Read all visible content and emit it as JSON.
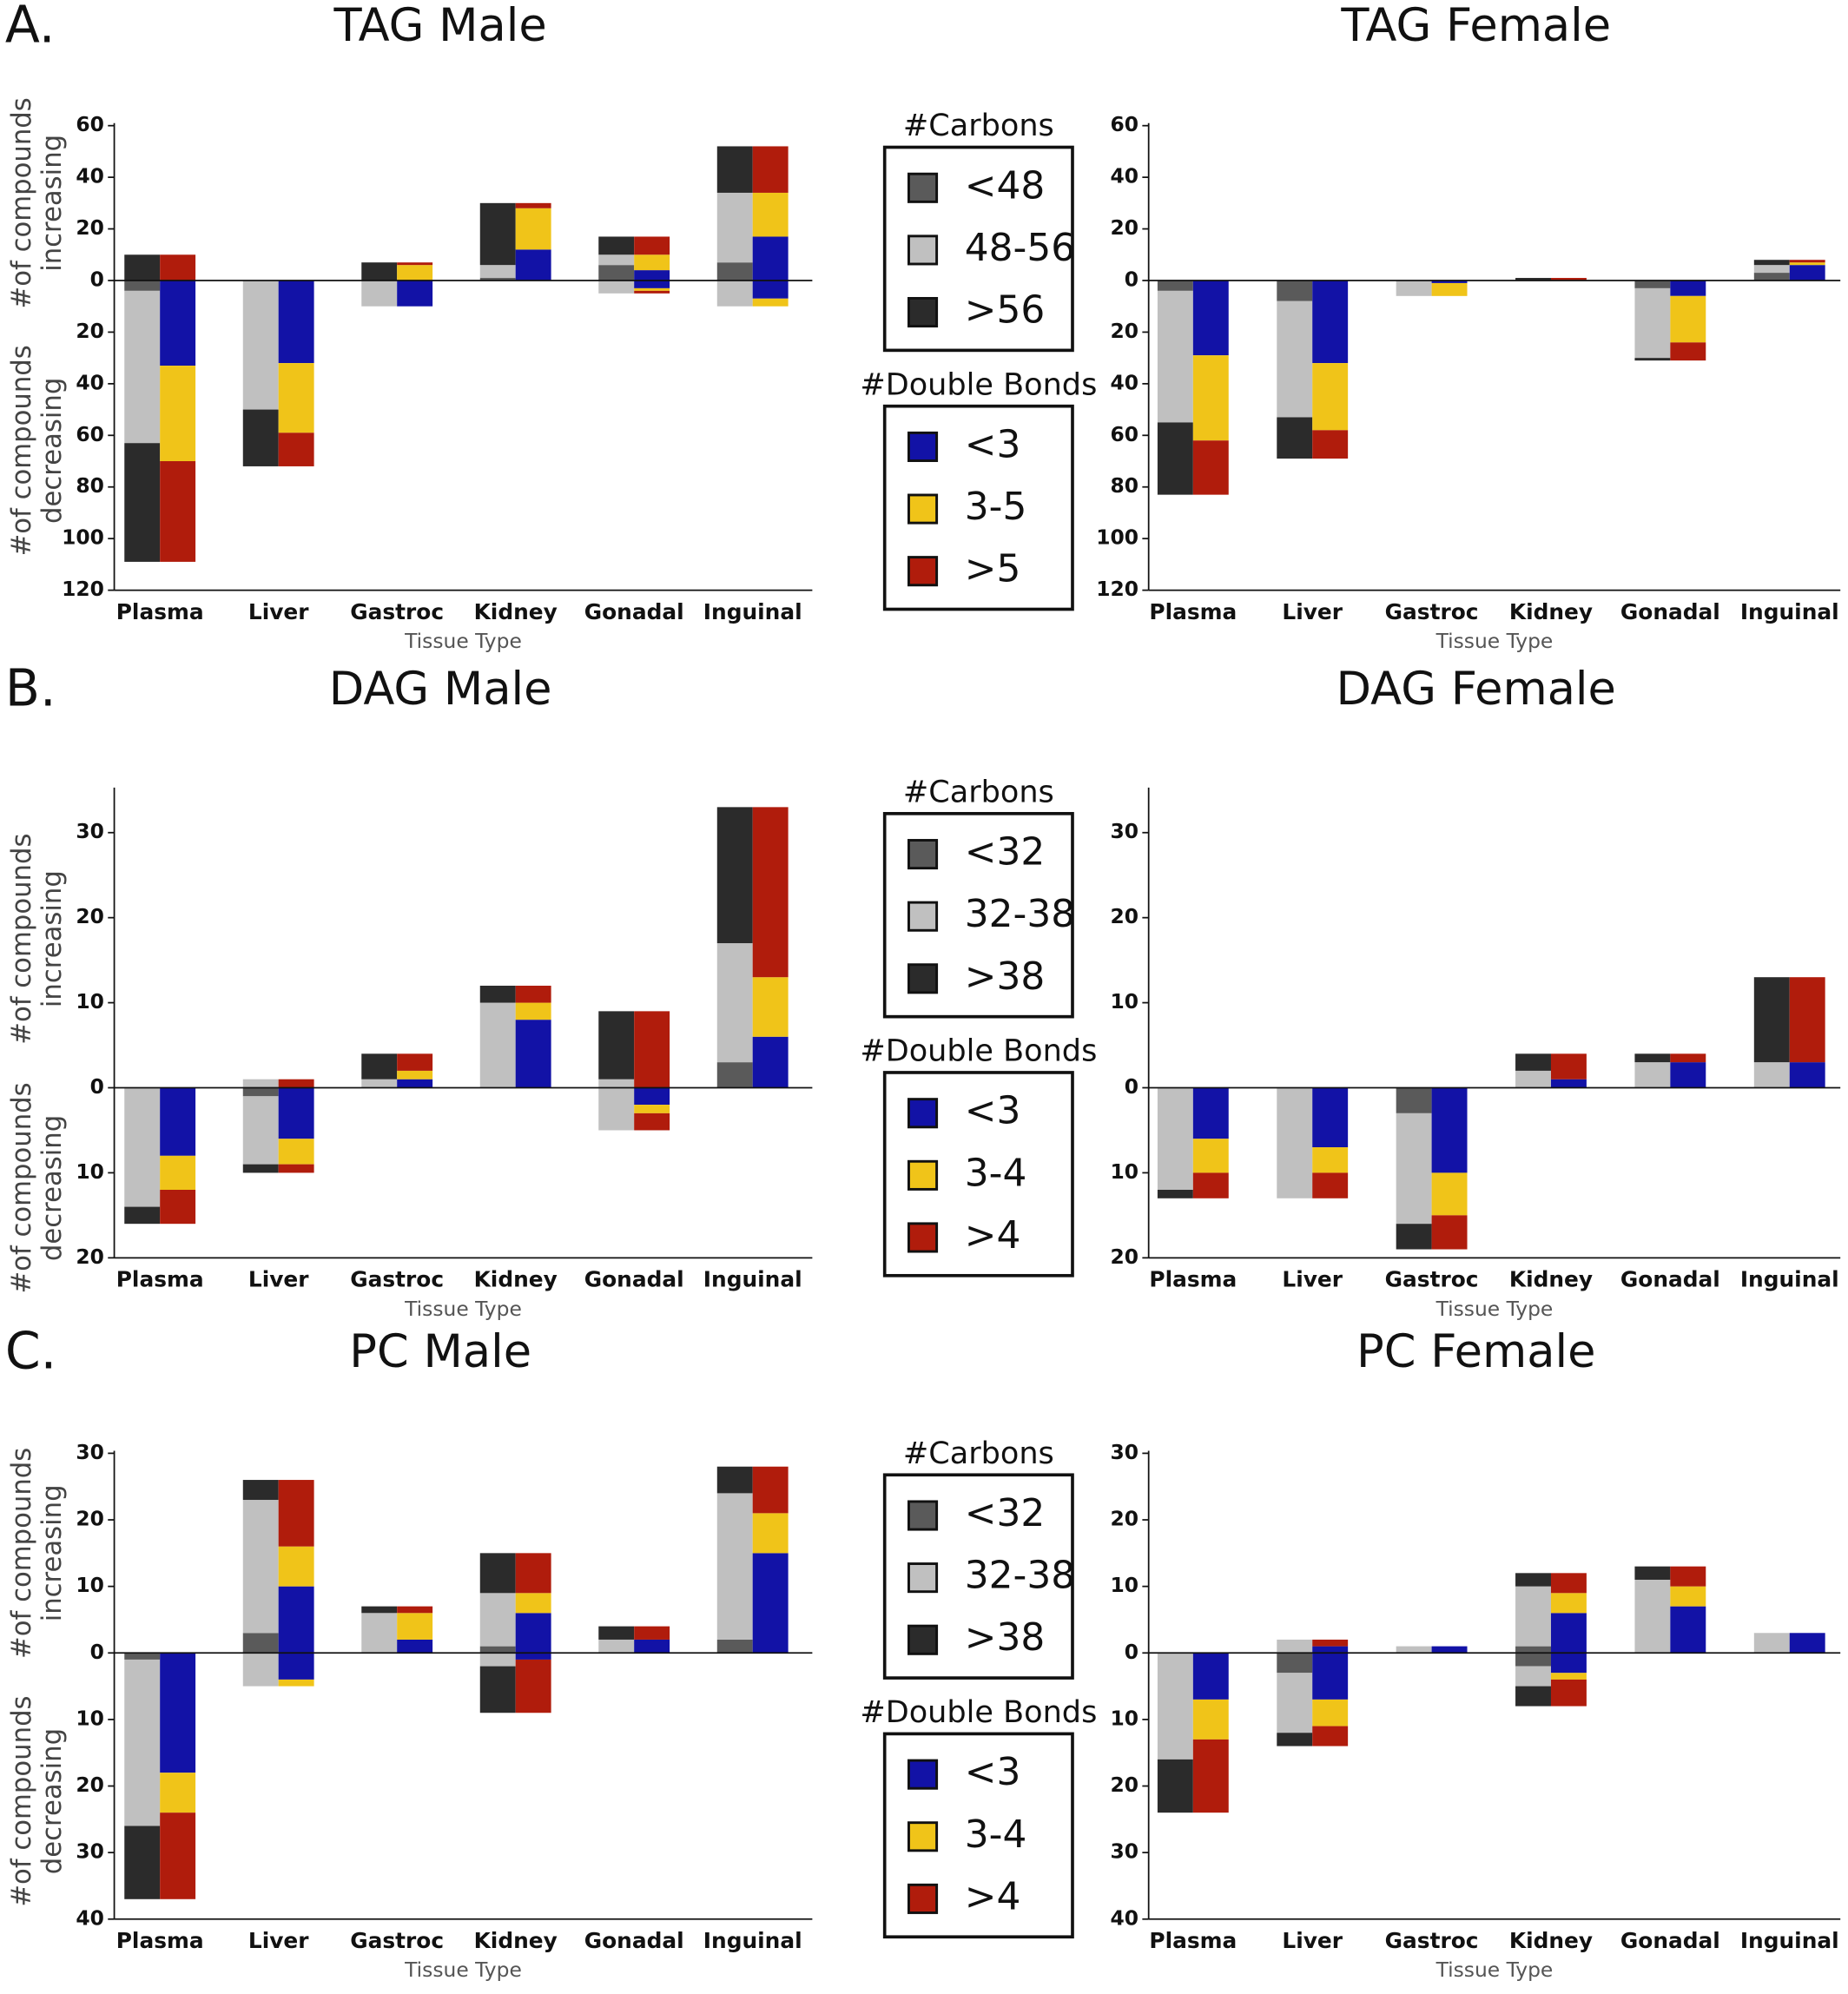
{
  "chart_data": [
    {
      "type": "bar",
      "panel": "A.",
      "title": "TAG Male",
      "xlabel": "Tissue Type",
      "ylabel_up": [
        "#of compounds",
        "increasing"
      ],
      "ylabel_down": [
        "#of compounds",
        "decreasing"
      ],
      "categories": [
        "Plasma",
        "Liver",
        "Gastroc",
        "Kidney",
        "Gonadal",
        "Inguinal"
      ],
      "ylim": [
        -120,
        60
      ],
      "yticks": [
        60,
        40,
        20,
        0,
        {
          "value": -20,
          "label": "20"
        },
        {
          "value": -40,
          "label": "40"
        },
        {
          "value": -60,
          "label": "60"
        },
        {
          "value": -80,
          "label": "80"
        },
        {
          "value": -100,
          "label": "100"
        },
        {
          "value": -120,
          "label": "120"
        }
      ],
      "series_groups": [
        {
          "title": "#Carbons",
          "series": [
            {
              "name": "<48",
              "color": "#5a5a5a",
              "values": [
                0,
                0,
                0,
                1,
                6,
                7
              ],
              "values_down": [
                -4,
                0,
                0,
                0,
                0,
                0
              ]
            },
            {
              "name": "48-56",
              "color": "#c0c0c0",
              "values": [
                0,
                0,
                0,
                5,
                4,
                27
              ],
              "values_down": [
                -59,
                -50,
                -10,
                0,
                -5,
                -10
              ]
            },
            {
              "name": ">56",
              "color": "#2b2b2b",
              "values": [
                10,
                0,
                7,
                24,
                7,
                18
              ],
              "values_down": [
                -46,
                -22,
                0,
                0,
                0,
                0
              ]
            }
          ]
        },
        {
          "title": "#Double Bonds",
          "series": [
            {
              "name": "<3",
              "color": "#1212a6",
              "values": [
                0,
                0,
                0,
                12,
                4,
                17
              ],
              "values_down": [
                -33,
                -32,
                -10,
                0,
                -3,
                -7
              ]
            },
            {
              "name": "3-5",
              "color": "#f0c419",
              "values": [
                0,
                0,
                6,
                16,
                6,
                17
              ],
              "values_down": [
                -37,
                -27,
                0,
                0,
                -1,
                -3
              ]
            },
            {
              "name": ">5",
              "color": "#b01c0c",
              "values": [
                10,
                0,
                1,
                2,
                7,
                18
              ],
              "values_down": [
                -39,
                -13,
                0,
                0,
                -1,
                0
              ]
            }
          ]
        }
      ]
    },
    {
      "type": "bar",
      "title": "TAG Female",
      "xlabel": "Tissue Type",
      "categories": [
        "Plasma",
        "Liver",
        "Gastroc",
        "Kidney",
        "Gonadal",
        "Inguinal"
      ],
      "ylim": [
        -120,
        60
      ],
      "yticks": [
        60,
        40,
        20,
        0,
        {
          "value": -20,
          "label": "20"
        },
        {
          "value": -40,
          "label": "40"
        },
        {
          "value": -60,
          "label": "60"
        },
        {
          "value": -80,
          "label": "80"
        },
        {
          "value": -100,
          "label": "100"
        },
        {
          "value": -120,
          "label": "120"
        }
      ],
      "series_groups": [
        {
          "series": [
            {
              "color": "#5a5a5a",
              "values": [
                0,
                0,
                0,
                0,
                0,
                3
              ],
              "values_down": [
                -4,
                -8,
                0,
                0,
                -3,
                0
              ]
            },
            {
              "color": "#c0c0c0",
              "values": [
                0,
                0,
                0,
                0,
                0,
                3
              ],
              "values_down": [
                -51,
                -45,
                -6,
                0,
                -27,
                0
              ]
            },
            {
              "color": "#2b2b2b",
              "values": [
                0,
                0,
                0,
                1,
                0,
                2
              ],
              "values_down": [
                -28,
                -16,
                0,
                0,
                -1,
                0
              ]
            }
          ]
        },
        {
          "series": [
            {
              "color": "#1212a6",
              "values": [
                0,
                0,
                0,
                0,
                0,
                6
              ],
              "values_down": [
                -29,
                -32,
                -1,
                0,
                -6,
                0
              ]
            },
            {
              "color": "#f0c419",
              "values": [
                0,
                0,
                0,
                0,
                0,
                1
              ],
              "values_down": [
                -33,
                -26,
                -5,
                0,
                -18,
                0
              ]
            },
            {
              "color": "#b01c0c",
              "values": [
                0,
                0,
                0,
                1,
                0,
                1
              ],
              "values_down": [
                -21,
                -11,
                0,
                0,
                -7,
                0
              ]
            }
          ]
        }
      ]
    },
    {
      "type": "bar",
      "panel": "B.",
      "title": "DAG Male",
      "xlabel": "Tissue Type",
      "ylabel_up": [
        "#of compounds",
        "increasing"
      ],
      "ylabel_down": [
        "#of compounds",
        "decreasing"
      ],
      "categories": [
        "Plasma",
        "Liver",
        "Gastroc",
        "Kidney",
        "Gonadal",
        "Inguinal"
      ],
      "ylim": [
        -20,
        35
      ],
      "yticks": [
        30,
        20,
        10,
        0,
        {
          "value": -10,
          "label": "10"
        },
        {
          "value": -20,
          "label": "20"
        }
      ],
      "series_groups": [
        {
          "title": "#Carbons",
          "series": [
            {
              "name": "<32",
              "color": "#5a5a5a",
              "values": [
                0,
                0,
                0,
                0,
                0,
                3
              ],
              "values_down": [
                0,
                -1,
                0,
                0,
                0,
                0
              ]
            },
            {
              "name": "32-38",
              "color": "#c0c0c0",
              "values": [
                0,
                1,
                1,
                10,
                1,
                14
              ],
              "values_down": [
                -14,
                -8,
                0,
                0,
                -5,
                0
              ]
            },
            {
              "name": ">38",
              "color": "#2b2b2b",
              "values": [
                0,
                0,
                3,
                2,
                8,
                16
              ],
              "values_down": [
                -2,
                -1,
                0,
                0,
                0,
                0
              ]
            }
          ]
        },
        {
          "title": "#Double Bonds",
          "series": [
            {
              "name": "<3",
              "color": "#1212a6",
              "values": [
                0,
                0,
                1,
                8,
                0,
                6
              ],
              "values_down": [
                -8,
                -6,
                0,
                0,
                -2,
                0
              ]
            },
            {
              "name": "3-4",
              "color": "#f0c419",
              "values": [
                0,
                0,
                1,
                2,
                0,
                7
              ],
              "values_down": [
                -4,
                -3,
                0,
                0,
                -1,
                0
              ]
            },
            {
              "name": ">4",
              "color": "#b01c0c",
              "values": [
                0,
                1,
                2,
                2,
                9,
                20
              ],
              "values_down": [
                -4,
                -1,
                0,
                0,
                -2,
                0
              ]
            }
          ]
        }
      ]
    },
    {
      "type": "bar",
      "title": "DAG Female",
      "xlabel": "Tissue Type",
      "categories": [
        "Plasma",
        "Liver",
        "Gastroc",
        "Kidney",
        "Gonadal",
        "Inguinal"
      ],
      "ylim": [
        -20,
        35
      ],
      "yticks": [
        30,
        20,
        10,
        0,
        {
          "value": -10,
          "label": "10"
        },
        {
          "value": -20,
          "label": "20"
        }
      ],
      "series_groups": [
        {
          "series": [
            {
              "color": "#5a5a5a",
              "values": [
                0,
                0,
                0,
                0,
                0,
                0
              ],
              "values_down": [
                0,
                0,
                -3,
                0,
                0,
                0
              ]
            },
            {
              "color": "#c0c0c0",
              "values": [
                0,
                0,
                0,
                2,
                3,
                3
              ],
              "values_down": [
                -12,
                -13,
                -13,
                0,
                0,
                0
              ]
            },
            {
              "color": "#2b2b2b",
              "values": [
                0,
                0,
                0,
                2,
                1,
                10
              ],
              "values_down": [
                -1,
                0,
                -3,
                0,
                0,
                0
              ]
            }
          ]
        },
        {
          "series": [
            {
              "color": "#1212a6",
              "values": [
                0,
                0,
                0,
                1,
                3,
                3
              ],
              "values_down": [
                -6,
                -7,
                -10,
                0,
                0,
                0
              ]
            },
            {
              "color": "#f0c419",
              "values": [
                0,
                0,
                0,
                0,
                0,
                0
              ],
              "values_down": [
                -4,
                -3,
                -5,
                0,
                0,
                0
              ]
            },
            {
              "color": "#b01c0c",
              "values": [
                0,
                0,
                0,
                3,
                1,
                10
              ],
              "values_down": [
                -3,
                -3,
                -4,
                0,
                0,
                0
              ]
            }
          ]
        }
      ]
    },
    {
      "type": "bar",
      "panel": "C.",
      "title": "PC Male",
      "xlabel": "Tissue Type",
      "ylabel_up": [
        "#of compounds",
        "increasing"
      ],
      "ylabel_down": [
        "#of compounds",
        "decreasing"
      ],
      "categories": [
        "Plasma",
        "Liver",
        "Gastroc",
        "Kidney",
        "Gonadal",
        "Inguinal"
      ],
      "ylim": [
        -40,
        30
      ],
      "yticks": [
        30,
        20,
        10,
        0,
        {
          "value": -10,
          "label": "10"
        },
        {
          "value": -20,
          "label": "20"
        },
        {
          "value": -30,
          "label": "30"
        },
        {
          "value": -40,
          "label": "40"
        }
      ],
      "series_groups": [
        {
          "title": "#Carbons",
          "series": [
            {
              "name": "<32",
              "color": "#5a5a5a",
              "values": [
                0,
                3,
                0,
                1,
                0,
                2
              ],
              "values_down": [
                -1,
                0,
                0,
                0,
                0,
                0
              ]
            },
            {
              "name": "32-38",
              "color": "#c0c0c0",
              "values": [
                0,
                20,
                6,
                8,
                2,
                22
              ],
              "values_down": [
                -25,
                -5,
                0,
                -2,
                0,
                0
              ]
            },
            {
              "name": ">38",
              "color": "#2b2b2b",
              "values": [
                0,
                3,
                1,
                6,
                2,
                4
              ],
              "values_down": [
                -11,
                0,
                0,
                -7,
                0,
                0
              ]
            }
          ]
        },
        {
          "title": "#Double Bonds",
          "series": [
            {
              "name": "<3",
              "color": "#1212a6",
              "values": [
                0,
                10,
                2,
                6,
                2,
                15
              ],
              "values_down": [
                -18,
                -4,
                0,
                -1,
                0,
                0
              ]
            },
            {
              "name": "3-4",
              "color": "#f0c419",
              "values": [
                0,
                6,
                4,
                3,
                0,
                6
              ],
              "values_down": [
                -6,
                -1,
                0,
                0,
                0,
                0
              ]
            },
            {
              "name": ">4",
              "color": "#b01c0c",
              "values": [
                0,
                10,
                1,
                6,
                2,
                7
              ],
              "values_down": [
                -13,
                0,
                0,
                -8,
                0,
                0
              ]
            }
          ]
        }
      ]
    },
    {
      "type": "bar",
      "title": "PC Female",
      "xlabel": "Tissue Type",
      "categories": [
        "Plasma",
        "Liver",
        "Gastroc",
        "Kidney",
        "Gonadal",
        "Inguinal"
      ],
      "ylim": [
        -40,
        30
      ],
      "yticks": [
        30,
        20,
        10,
        0,
        {
          "value": -10,
          "label": "10"
        },
        {
          "value": -20,
          "label": "20"
        },
        {
          "value": -30,
          "label": "30"
        },
        {
          "value": -40,
          "label": "40"
        }
      ],
      "series_groups": [
        {
          "series": [
            {
              "color": "#5a5a5a",
              "values": [
                0,
                0,
                0,
                1,
                0,
                0
              ],
              "values_down": [
                0,
                -3,
                0,
                -2,
                0,
                0
              ]
            },
            {
              "color": "#c0c0c0",
              "values": [
                0,
                2,
                1,
                9,
                11,
                3
              ],
              "values_down": [
                -16,
                -9,
                0,
                -3,
                0,
                0
              ]
            },
            {
              "color": "#2b2b2b",
              "values": [
                0,
                0,
                0,
                2,
                2,
                0
              ],
              "values_down": [
                -8,
                -2,
                0,
                -3,
                0,
                0
              ]
            }
          ]
        },
        {
          "series": [
            {
              "color": "#1212a6",
              "values": [
                0,
                1,
                1,
                6,
                7,
                3
              ],
              "values_down": [
                -7,
                -7,
                0,
                -3,
                0,
                0
              ]
            },
            {
              "color": "#f0c419",
              "values": [
                0,
                0,
                0,
                3,
                3,
                0
              ],
              "values_down": [
                -6,
                -4,
                0,
                -1,
                0,
                0
              ]
            },
            {
              "color": "#b01c0c",
              "values": [
                0,
                1,
                0,
                3,
                3,
                0
              ],
              "values_down": [
                -11,
                -3,
                0,
                -4,
                0,
                0
              ]
            }
          ]
        }
      ]
    }
  ]
}
